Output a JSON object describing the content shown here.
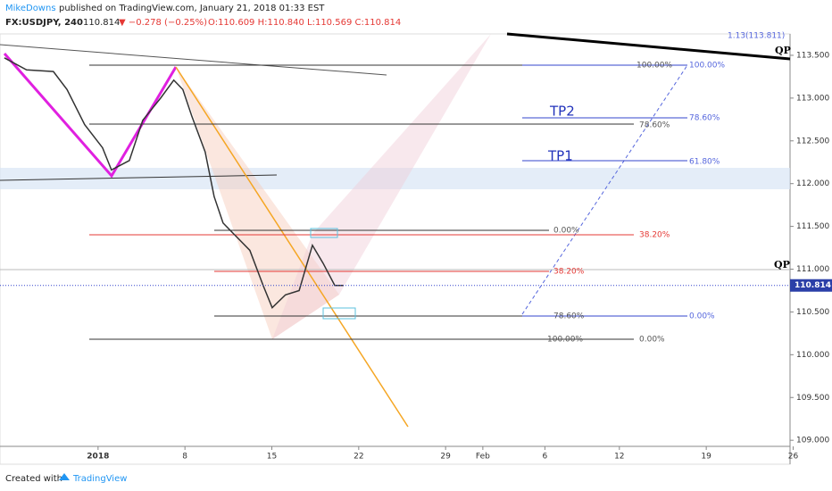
{
  "header": {
    "author": "MikeDowns",
    "published": "published on TradingView.com, January 21, 2018 01:33 EST",
    "symbol": "FX:USDJPY, 240",
    "price": "110.814",
    "change": "▼ −0.278 (−0.25%)",
    "ohlc": "O:110.609 H:110.840 L:110.569 C:110.814"
  },
  "footer": {
    "created": "Created with",
    "brand": "TradingView"
  },
  "chart_data": {
    "type": "line",
    "color": "#333333",
    "x": [
      -6.55,
      -4.76,
      -2.6,
      -1.5,
      -0.08,
      1.36,
      2.08,
      3.52,
      4.6,
      6.04,
      7.1,
      7.83,
      8.55,
      9.63,
      10.35,
      11.07,
      12.15,
      13.23,
      14.3,
      15.03,
      16.1,
      17.2,
      18.27,
      19.13,
      20.07,
      20.78
    ],
    "values": [
      113.47,
      113.33,
      113.31,
      113.1,
      112.69,
      112.42,
      112.16,
      112.27,
      112.74,
      113.0,
      113.21,
      113.1,
      112.79,
      112.37,
      111.85,
      111.54,
      111.38,
      111.22,
      110.81,
      110.55,
      110.7,
      110.75,
      111.28,
      111.07,
      110.81,
      110.81
    ],
    "xlim": [
      -6.9,
      56.75
    ],
    "ylim": [
      108.72,
      113.75
    ],
    "xticks": [
      {
        "value": 1,
        "label": "2018"
      },
      8,
      15,
      22,
      29,
      {
        "value": 32,
        "label": "Feb"
      },
      {
        "value": 37,
        "label": "6"
      },
      {
        "value": 43,
        "label": "12"
      },
      {
        "value": 50,
        "label": "19"
      },
      {
        "value": 57,
        "label": "26"
      }
    ],
    "yticks": [
      {
        "value": 109,
        "label": "109.000"
      },
      {
        "value": 109.5,
        "label": "109.500"
      },
      {
        "value": 110,
        "label": "110.000"
      },
      {
        "value": 110.5,
        "label": "110.500"
      },
      {
        "value": 111,
        "label": "111.000"
      },
      {
        "value": 111.5,
        "label": "111.500"
      },
      {
        "value": 112,
        "label": "112.000"
      },
      {
        "value": 112.5,
        "label": "112.500"
      },
      {
        "value": 113,
        "label": "113.000"
      },
      {
        "value": 113.5,
        "label": "113.500"
      }
    ],
    "annotations": [
      "QP",
      "1.13(113.811)",
      "100.00%",
      "100.00%",
      "TP2",
      "78.60%",
      "78.60%",
      "TP1",
      "61.80%",
      "0.00%",
      "38.20%",
      "38.20%",
      "QP",
      "78.60%",
      "0.00%",
      "100.00%",
      "0.00%"
    ]
  }
}
